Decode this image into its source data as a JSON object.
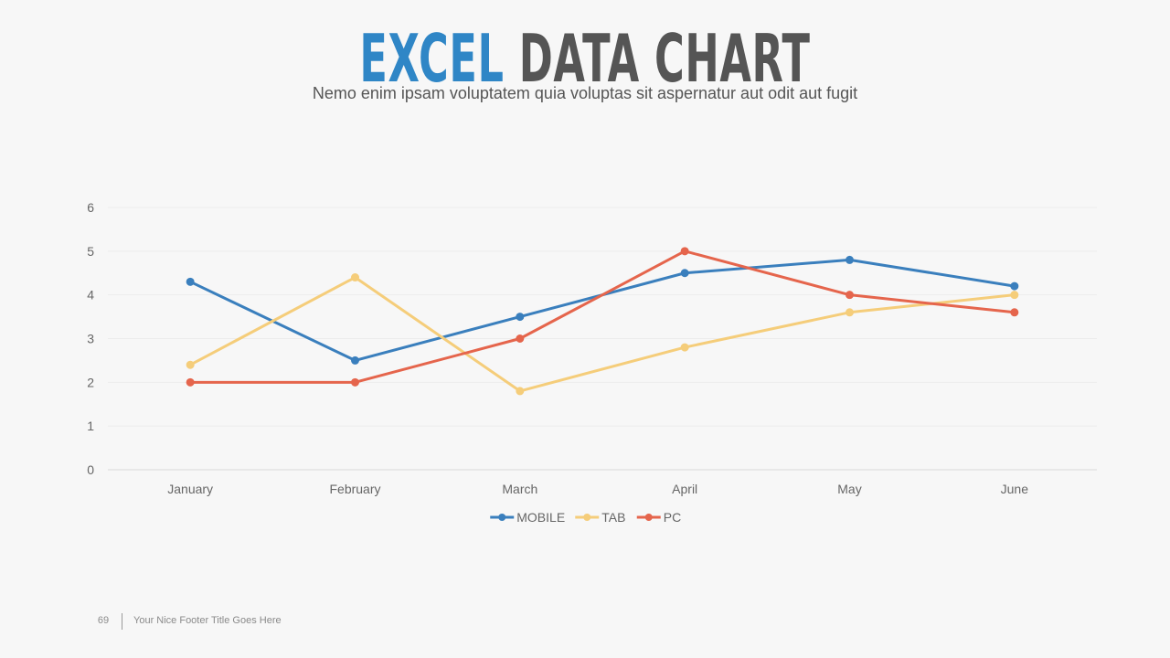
{
  "slide": {
    "title_part1": "EXCEL",
    "title_part2": "DATA CHART",
    "subtitle": "Nemo enim ipsam voluptatem quia voluptas sit aspernatur  aut odit aut fugit",
    "footer_page": "69",
    "footer_title": "Your Nice Footer Title Goes Here",
    "colors": {
      "accent": "#2f86c6",
      "heading": "#555555",
      "background": "#f7f7f7"
    }
  },
  "chart_data": {
    "type": "line",
    "categories": [
      "January",
      "February",
      "March",
      "April",
      "May",
      "June"
    ],
    "series": [
      {
        "name": "MOBILE",
        "color": "#3a7fbd",
        "values": [
          4.3,
          2.5,
          3.5,
          4.5,
          4.8,
          4.2
        ]
      },
      {
        "name": "TAB",
        "color": "#f5cd7a",
        "values": [
          2.4,
          4.4,
          1.8,
          2.8,
          3.6,
          4.0
        ]
      },
      {
        "name": "PC",
        "color": "#e5654c",
        "values": [
          2.0,
          2.0,
          3.0,
          5.0,
          4.0,
          3.6
        ]
      }
    ],
    "yticks": [
      "0",
      "1",
      "2",
      "3",
      "4",
      "5",
      "6"
    ],
    "ylim": [
      0,
      6
    ],
    "grid": true,
    "legend": "bottom-center"
  }
}
